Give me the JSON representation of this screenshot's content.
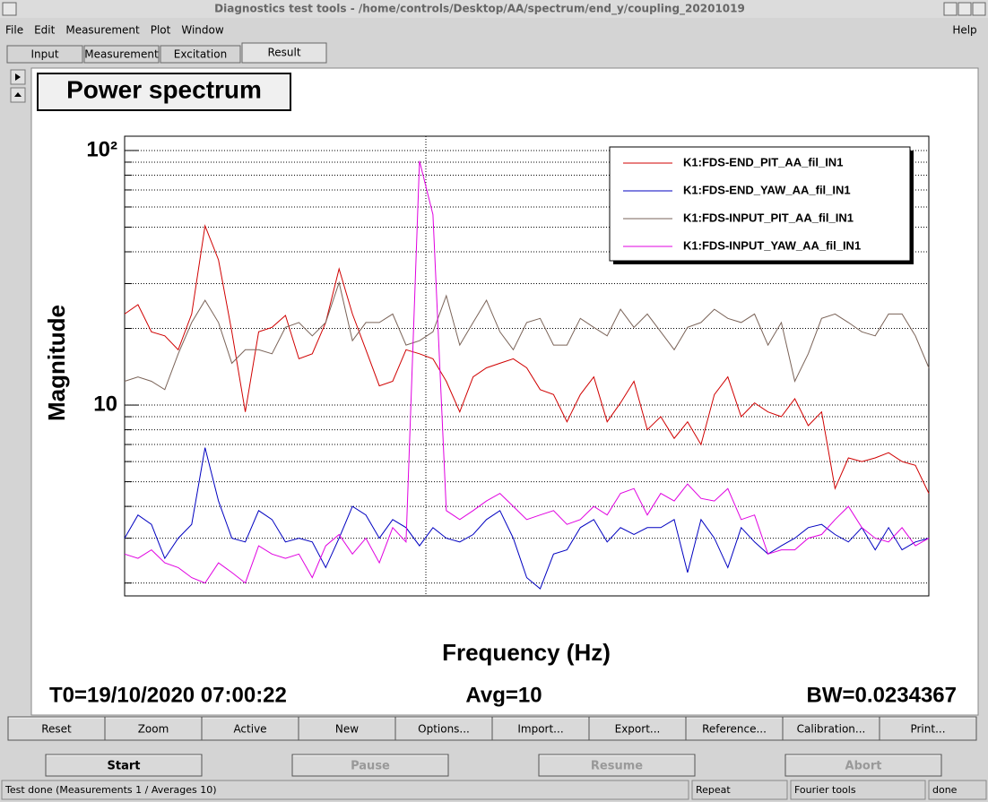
{
  "window": {
    "title": "Diagnostics test tools - /home/controls/Desktop/AA/spectrum/end_y/coupling_20201019"
  },
  "menu": [
    "File",
    "Edit",
    "Measurement",
    "Plot",
    "Window"
  ],
  "help": "Help",
  "tabs": [
    "Input",
    "Measurement",
    "Excitation",
    "Result"
  ],
  "active_tab": 3,
  "chart_data": {
    "type": "line",
    "title": "Power spectrum",
    "xlabel": "Frequency (Hz)",
    "ylabel": "Magnitude",
    "log_y": true,
    "grid": true,
    "legend": "top-right",
    "ylim": [
      1.78,
      113.8
    ],
    "yticks": [
      10,
      {
        "value": 100,
        "label": "10²"
      }
    ],
    "minor_yticks": [
      2,
      3,
      4,
      5,
      6,
      7,
      8,
      9,
      20,
      30,
      40,
      50,
      60,
      70,
      80,
      90
    ],
    "series": [
      {
        "name": "K1:FDS-END_PIT_AA_fil_IN1",
        "color": "#d00000",
        "values": [
          22.8,
          24.8,
          19.4,
          18.7,
          16.5,
          22.8,
          50.6,
          37.2,
          19.4,
          9.4,
          19.4,
          20.2,
          22.5,
          15.2,
          15.9,
          21.1,
          34.3,
          22.8,
          16.5,
          11.9,
          12.4,
          16.5,
          15.9,
          15.2,
          12.4,
          9.4,
          12.9,
          14.0,
          14.6,
          15.2,
          14.0,
          11.5,
          11.0,
          8.6,
          11.0,
          12.9,
          8.6,
          10.2,
          12.4,
          8.0,
          9.0,
          7.4,
          8.6,
          7.0,
          11.0,
          12.9,
          9.0,
          10.2,
          9.4,
          9.0,
          10.6,
          8.3,
          9.4,
          4.7,
          6.2,
          6.0,
          6.2,
          6.5,
          6.0,
          5.8,
          4.5
        ]
      },
      {
        "name": "K1:FDS-END_YAW_AA_fil_IN1",
        "color": "#0000c0",
        "values": [
          3.0,
          3.7,
          3.4,
          2.5,
          3.0,
          3.4,
          6.8,
          4.2,
          3.0,
          2.9,
          3.85,
          3.55,
          2.9,
          3.0,
          2.9,
          2.3,
          3.0,
          4.0,
          3.7,
          3.0,
          3.55,
          3.3,
          2.8,
          3.3,
          3.0,
          2.9,
          3.1,
          3.55,
          3.85,
          3.0,
          2.1,
          1.9,
          2.6,
          2.7,
          3.3,
          3.55,
          2.9,
          3.3,
          3.1,
          3.3,
          3.3,
          3.55,
          2.2,
          3.55,
          3.0,
          2.3,
          3.3,
          2.9,
          2.6,
          2.8,
          3.0,
          3.3,
          3.4,
          3.1,
          2.9,
          3.3,
          2.7,
          3.3,
          2.7,
          2.9,
          3.0
        ]
      },
      {
        "name": "K1:FDS-INPUT_PIT_AA_fil_IN1",
        "color": "#7a6358",
        "values": [
          12.4,
          12.9,
          12.4,
          11.5,
          15.9,
          21.1,
          25.8,
          21.1,
          14.6,
          16.5,
          16.5,
          15.9,
          20.2,
          21.1,
          18.7,
          21.1,
          30.3,
          17.9,
          21.1,
          21.1,
          22.8,
          17.2,
          17.9,
          19.4,
          26.9,
          17.2,
          21.1,
          25.8,
          19.4,
          16.5,
          21.1,
          21.9,
          17.2,
          17.2,
          21.9,
          20.2,
          18.7,
          23.8,
          20.2,
          22.8,
          19.4,
          16.5,
          20.2,
          21.1,
          23.8,
          21.9,
          21.1,
          22.8,
          17.2,
          21.1,
          12.4,
          15.9,
          21.9,
          22.8,
          21.1,
          19.4,
          18.7,
          22.8,
          22.8,
          18.7,
          14.0
        ]
      },
      {
        "name": "K1:FDS-INPUT_YAW_AA_fil_IN1",
        "color": "#e000e0",
        "values": [
          2.6,
          2.5,
          2.7,
          2.4,
          2.3,
          2.1,
          2.0,
          2.4,
          2.2,
          2.0,
          2.8,
          2.6,
          2.5,
          2.6,
          2.1,
          2.8,
          3.1,
          2.6,
          3.0,
          2.4,
          3.3,
          2.9,
          91,
          56,
          3.85,
          3.55,
          3.85,
          4.2,
          4.5,
          4.0,
          3.55,
          3.7,
          3.85,
          3.4,
          3.55,
          4.0,
          3.7,
          4.5,
          4.7,
          3.7,
          4.5,
          4.2,
          4.9,
          4.3,
          4.2,
          4.7,
          3.55,
          3.7,
          2.6,
          2.7,
          2.7,
          3.0,
          3.1,
          3.55,
          4.0,
          3.3,
          3.0,
          2.9,
          3.3,
          2.8,
          3.0
        ]
      }
    ],
    "annotations": [
      "T0=19/10/2020 07:00:22",
      "Avg=10",
      "BW=0.0234367"
    ]
  },
  "toolbar": [
    "Reset",
    "Zoom",
    "Active",
    "New",
    "Options...",
    "Import...",
    "Export...",
    "Reference...",
    "Calibration...",
    "Print..."
  ],
  "controls": [
    {
      "label": "Start",
      "enabled": true
    },
    {
      "label": "Pause",
      "enabled": false
    },
    {
      "label": "Resume",
      "enabled": false
    },
    {
      "label": "Abort",
      "enabled": false
    }
  ],
  "status": [
    "Test done (Measurements 1 / Averages 10)",
    "Repeat",
    "Fourier tools",
    "done"
  ]
}
